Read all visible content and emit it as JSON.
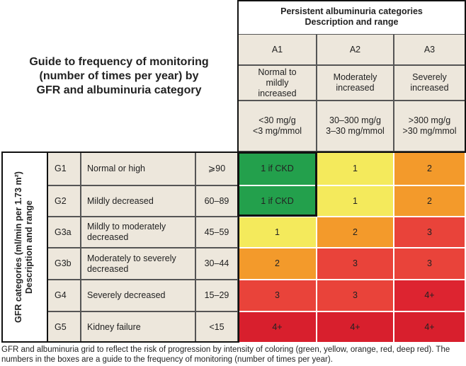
{
  "title": "Guide to frequency of monitoring (number of times per year) by GFR and albuminuria category",
  "albuminuria_header": {
    "title": "Persistent albuminuria categories",
    "subtitle": "Description and range"
  },
  "albuminuria_categories": [
    {
      "code": "A1",
      "description": "Normal to mildly increased",
      "range": [
        "<30 mg/g",
        "<3 mg/mmol"
      ]
    },
    {
      "code": "A2",
      "description": "Moderately increased",
      "range": [
        "30–300 mg/g",
        "3–30 mg/mmol"
      ]
    },
    {
      "code": "A3",
      "description": "Severely increased",
      "range": [
        ">300 mg/g",
        ">30 mg/mmol"
      ]
    }
  ],
  "gfr_header": {
    "title": "GFR categories (ml/min per 1.73 m²)",
    "subtitle": "Description and range"
  },
  "gfr_categories": [
    {
      "code": "G1",
      "description": "Normal or high",
      "range": "⩾90",
      "cells": [
        {
          "label": "1 if CKD",
          "color": "#23a04c"
        },
        {
          "label": "1",
          "color": "#f4ea5c"
        },
        {
          "label": "2",
          "color": "#f39a2b"
        }
      ]
    },
    {
      "code": "G2",
      "description": "Mildly   decreased",
      "range": "60–89",
      "cells": [
        {
          "label": "1 if CKD",
          "color": "#23a04c"
        },
        {
          "label": "1",
          "color": "#f4ea5c"
        },
        {
          "label": "2",
          "color": "#f39a2b"
        }
      ]
    },
    {
      "code": "G3a",
      "description": "Mildly to moderately decreased",
      "range": "45–59",
      "cells": [
        {
          "label": "1",
          "color": "#f4ea5c"
        },
        {
          "label": "2",
          "color": "#f39a2b"
        },
        {
          "label": "3",
          "color": "#e9433a"
        }
      ]
    },
    {
      "code": "G3b",
      "description": "Moderately to severely decreased",
      "range": "30–44",
      "cells": [
        {
          "label": "2",
          "color": "#f39a2b"
        },
        {
          "label": "3",
          "color": "#e9433a"
        },
        {
          "label": "3",
          "color": "#e9433a"
        }
      ]
    },
    {
      "code": "G4",
      "description": "Severely decreased",
      "range": "15–29",
      "cells": [
        {
          "label": "3",
          "color": "#e9433a"
        },
        {
          "label": "3",
          "color": "#e9433a"
        },
        {
          "label": "4+",
          "color": "#dd2430"
        }
      ]
    },
    {
      "code": "G5",
      "description": "Kidney failure",
      "range": "<15",
      "cells": [
        {
          "label": "4+",
          "color": "#d81f2d"
        },
        {
          "label": "4+",
          "color": "#d81f2d"
        },
        {
          "label": "4+",
          "color": "#d81f2d"
        }
      ]
    }
  ],
  "caption": "GFR and albuminuria grid to reflect the risk of progression by intensity of coloring (green, yellow, orange, red, deep red). The numbers in the boxes are a guide to the frequency of monitoring (number of times per year)."
}
